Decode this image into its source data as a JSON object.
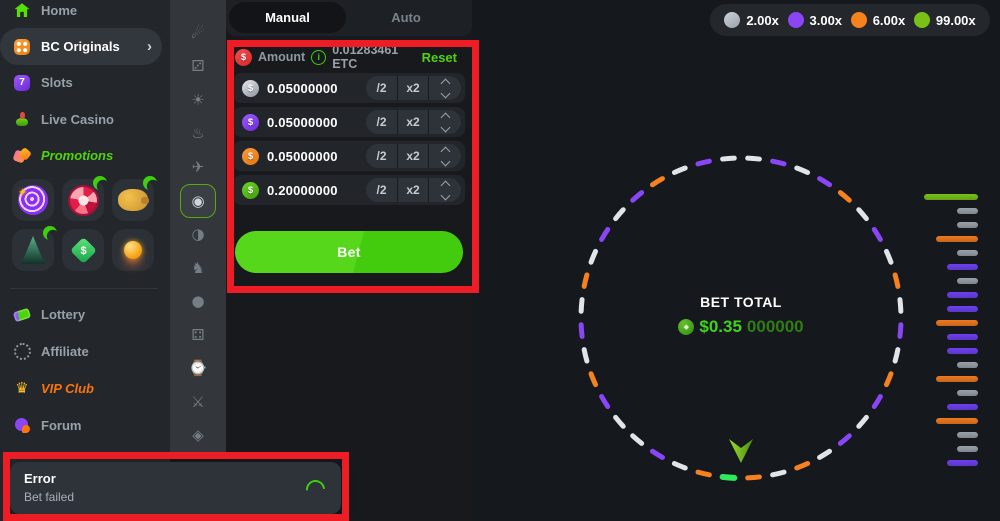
{
  "sidebar": {
    "items": [
      {
        "label": "Home"
      },
      {
        "label": "BC Originals"
      },
      {
        "label": "Slots"
      },
      {
        "label": "Live Casino"
      },
      {
        "label": "Promotions"
      }
    ],
    "chevron": "›",
    "bottom_items": [
      {
        "label": "Lottery"
      },
      {
        "label": "Affiliate"
      },
      {
        "label": "VIP Club"
      },
      {
        "label": "Forum"
      }
    ],
    "slots_glyph": "7",
    "crown_glyph": "♛",
    "tag_glyph": "$",
    "star_glyph": "✦"
  },
  "game_strip": {
    "selected_index": 5,
    "icons": [
      {
        "name": "comet-icon",
        "glyph": "☄"
      },
      {
        "name": "dice-icon",
        "glyph": "⚂"
      },
      {
        "name": "mine-icon",
        "glyph": "☀"
      },
      {
        "name": "flame-icon",
        "glyph": "♨"
      },
      {
        "name": "saucer-icon",
        "glyph": "✈"
      },
      {
        "name": "wheel-icon",
        "glyph": "◉"
      },
      {
        "name": "coinflip-icon",
        "glyph": "◑"
      },
      {
        "name": "knight-icon",
        "glyph": "♞"
      },
      {
        "name": "ball-icon",
        "glyph": "●"
      },
      {
        "name": "dice-pair-icon",
        "glyph": "⚃"
      },
      {
        "name": "timer-icon",
        "glyph": "⌚"
      },
      {
        "name": "sword-icon",
        "glyph": "⚔"
      },
      {
        "name": "gem-icon",
        "glyph": "◈"
      }
    ]
  },
  "bet_panel": {
    "tabs": {
      "manual": "Manual",
      "auto": "Auto",
      "selected": "Manual"
    },
    "amount_label": "Amount",
    "info_glyph": "i",
    "amount_value": "0.01283461 ETC",
    "reset_label": "Reset",
    "currency_symbol": "$",
    "half_label": "/2",
    "double_label": "x2",
    "bet_button_label": "Bet",
    "rows": [
      {
        "value": "0.05000000",
        "color": "linear-gradient(145deg,#e5e8ec,#8d959e)"
      },
      {
        "value": "0.05000000",
        "color": "linear-gradient(145deg,#9d5cff,#6d28d9)"
      },
      {
        "value": "0.05000000",
        "color": "linear-gradient(145deg,#fb9b3c,#e8720b)"
      },
      {
        "value": "0.20000000",
        "color": "linear-gradient(145deg,#6fd425,#3f9b0b)"
      }
    ],
    "amount_coin_color": "linear-gradient(145deg,#f35050,#d92626)"
  },
  "multipliers": [
    {
      "label": "2.00x",
      "color": "linear-gradient(145deg,#ccd3db,#99a1ab)"
    },
    {
      "label": "3.00x",
      "color": "#8a45f5"
    },
    {
      "label": "6.00x",
      "color": "#f5821f"
    },
    {
      "label": "99.00x",
      "color": "#79c116"
    }
  ],
  "wheel": {
    "bet_total_label": "BET TOTAL",
    "bet_total_main": "$0.35",
    "bet_total_zeros": "000000",
    "coin_glyph": "◆",
    "colors": {
      "w": "#dfe5ea",
      "p": "#8a45f5",
      "o": "#f5821f",
      "g": "#2ee95c"
    },
    "segments": [
      "w",
      "p",
      "w",
      "p",
      "o",
      "w",
      "p",
      "w",
      "o",
      "w",
      "p",
      "w",
      "o",
      "p",
      "w",
      "p",
      "w",
      "o",
      "w",
      "o",
      "g",
      "o",
      "w",
      "p",
      "w",
      "w",
      "p",
      "o",
      "w",
      "p",
      "w",
      "o",
      "w",
      "p",
      "w",
      "p",
      "o",
      "w",
      "p",
      "w"
    ]
  },
  "history": {
    "bar_colors": {
      "green": "#79c119",
      "silver": "#9aa1a9",
      "orange": "#f0791e",
      "purple": "#6d3ff0"
    },
    "bar_widths": {
      "green": 54,
      "silver": 21,
      "orange": 42,
      "purple": 31
    },
    "bars": [
      "green",
      "silver",
      "silver",
      "orange",
      "silver",
      "purple",
      "silver",
      "purple",
      "purple",
      "orange",
      "purple",
      "purple",
      "silver",
      "orange",
      "silver",
      "purple",
      "orange",
      "silver",
      "silver",
      "purple"
    ]
  },
  "toast": {
    "title": "Error",
    "message": "Bet failed"
  }
}
